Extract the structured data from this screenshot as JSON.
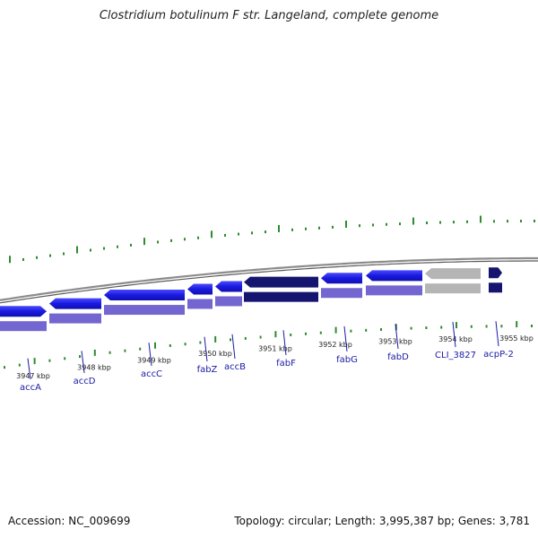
{
  "title": "Clostridium botulinum F str. Langeland, complete genome",
  "footer": {
    "accession": "Accession: NC_009699",
    "info": "Topology: circular; Length: 3,995,387 bp; Genes: 3,781"
  },
  "colors": {
    "backbone": "#8c8c8c",
    "gene_forward": "#1a1ae0",
    "gene_dark": "#151570",
    "gene_grey": "#b5b5b5",
    "gene_lower": "#7466d0",
    "tick": "#2e8b2e",
    "label": "#1a1aa6"
  },
  "axis": {
    "unit": "kbp",
    "ticks": [
      3947,
      3948,
      3949,
      3950,
      3951,
      3952,
      3953,
      3954,
      3955
    ]
  },
  "genes": [
    {
      "name": "accA",
      "color": "gene_forward"
    },
    {
      "name": "accD",
      "color": "gene_forward"
    },
    {
      "name": "accC",
      "color": "gene_forward"
    },
    {
      "name": "fabZ",
      "color": "gene_forward"
    },
    {
      "name": "accB",
      "color": "gene_forward"
    },
    {
      "name": "fabF",
      "color": "gene_dark"
    },
    {
      "name": "fabG",
      "color": "gene_forward"
    },
    {
      "name": "fabD",
      "color": "gene_forward"
    },
    {
      "name": "CLI_3827",
      "color": "gene_grey"
    },
    {
      "name": "acpP-2",
      "color": "gene_dark"
    }
  ]
}
